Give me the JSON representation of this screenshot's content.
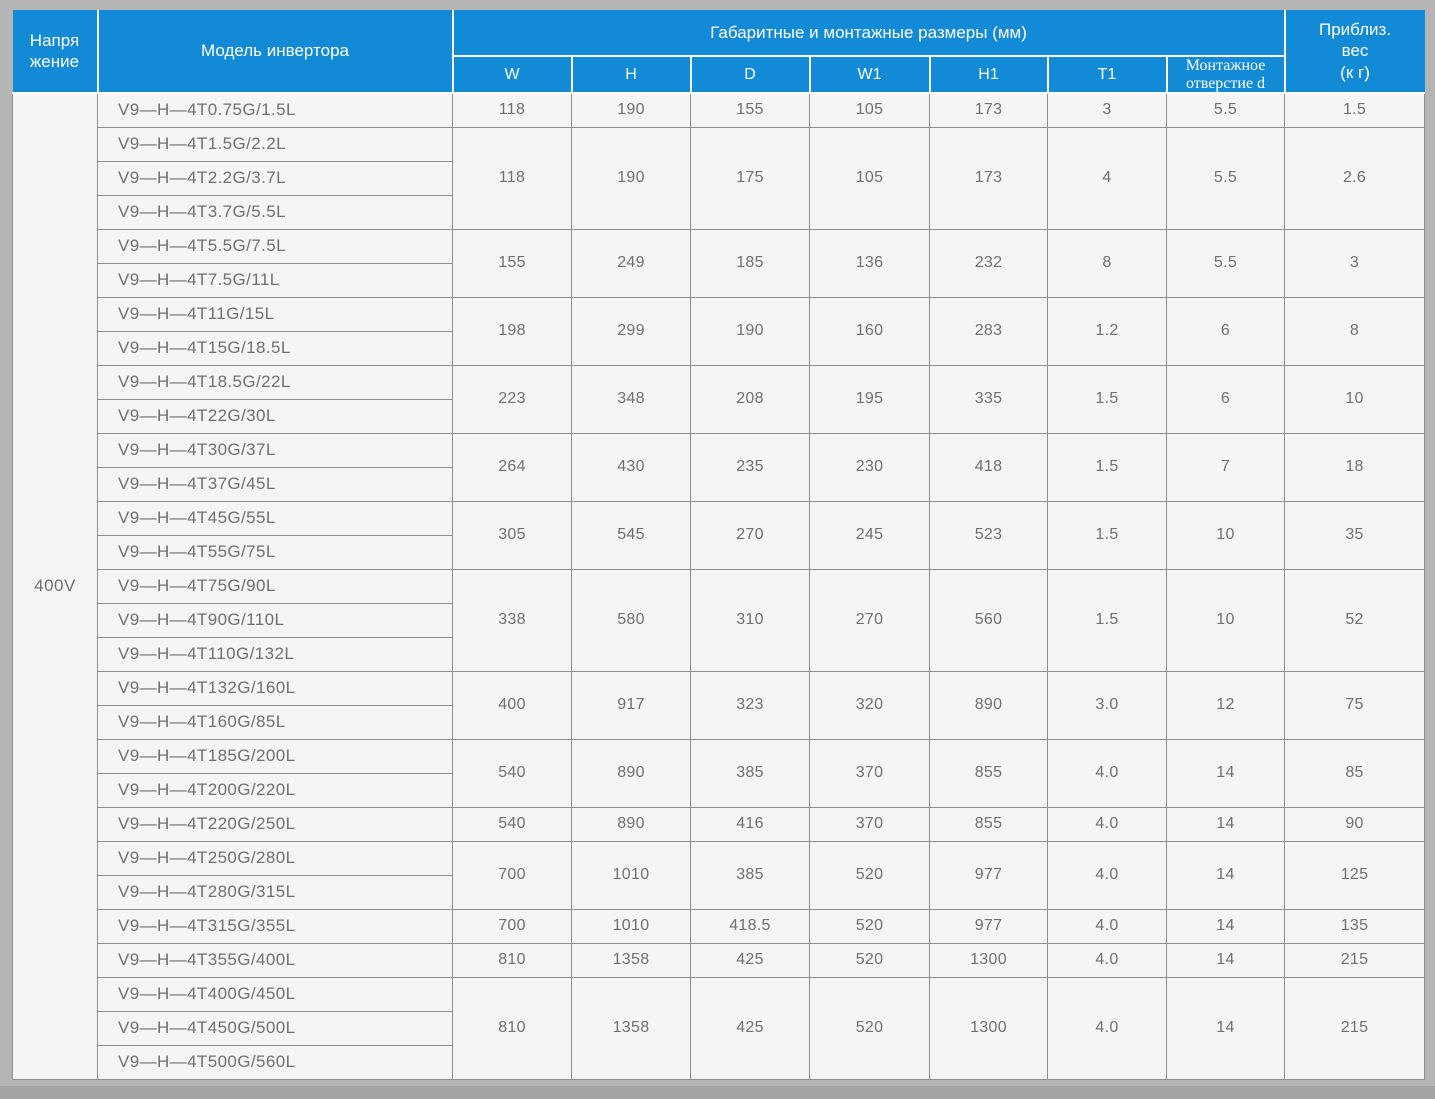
{
  "header": {
    "voltage": "Напря\nжение",
    "model": "Модель инвертора",
    "dims_group": "Габаритные и монтажные размеры (мм)",
    "dim_cols": [
      "W",
      "H",
      "D",
      "W1",
      "H1",
      "T1",
      "Монтажное\nотверстие d"
    ],
    "weight": "Приблиз.\nвес\n(к г)"
  },
  "voltage_value": "400V",
  "groups": [
    {
      "models": [
        "V9—H—4T0.75G/1.5L"
      ],
      "dims": [
        "118",
        "190",
        "155",
        "105",
        "173",
        "3",
        "5.5"
      ],
      "weight": "1.5"
    },
    {
      "models": [
        "V9—H—4T1.5G/2.2L",
        "V9—H—4T2.2G/3.7L",
        "V9—H—4T3.7G/5.5L"
      ],
      "dims": [
        "118",
        "190",
        "175",
        "105",
        "173",
        "4",
        "5.5"
      ],
      "weight": "2.6"
    },
    {
      "models": [
        "V9—H—4T5.5G/7.5L",
        "V9—H—4T7.5G/11L"
      ],
      "dims": [
        "155",
        "249",
        "185",
        "136",
        "232",
        "8",
        "5.5"
      ],
      "weight": "3"
    },
    {
      "models": [
        "V9—H—4T11G/15L",
        "V9—H—4T15G/18.5L"
      ],
      "dims": [
        "198",
        "299",
        "190",
        "160",
        "283",
        "1.2",
        "6"
      ],
      "weight": "8"
    },
    {
      "models": [
        "V9—H—4T18.5G/22L",
        "V9—H—4T22G/30L"
      ],
      "dims": [
        "223",
        "348",
        "208",
        "195",
        "335",
        "1.5",
        "6"
      ],
      "weight": "10"
    },
    {
      "models": [
        "V9—H—4T30G/37L",
        "V9—H—4T37G/45L"
      ],
      "dims": [
        "264",
        "430",
        "235",
        "230",
        "418",
        "1.5",
        "7"
      ],
      "weight": "18"
    },
    {
      "models": [
        "V9—H—4T45G/55L",
        "V9—H—4T55G/75L"
      ],
      "dims": [
        "305",
        "545",
        "270",
        "245",
        "523",
        "1.5",
        "10"
      ],
      "weight": "35"
    },
    {
      "models": [
        "V9—H—4T75G/90L",
        "V9—H—4T90G/110L",
        "V9—H—4T110G/132L"
      ],
      "dims": [
        "338",
        "580",
        "310",
        "270",
        "560",
        "1.5",
        "10"
      ],
      "weight": "52"
    },
    {
      "models": [
        "V9—H—4T132G/160L",
        "V9—H—4T160G/85L"
      ],
      "dims": [
        "400",
        "917",
        "323",
        "320",
        "890",
        "3.0",
        "12"
      ],
      "weight": "75"
    },
    {
      "models": [
        "V9—H—4T185G/200L",
        "V9—H—4T200G/220L"
      ],
      "dims": [
        "540",
        "890",
        "385",
        "370",
        "855",
        "4.0",
        "14"
      ],
      "weight": "85"
    },
    {
      "models": [
        "V9—H—4T220G/250L"
      ],
      "dims": [
        "540",
        "890",
        "416",
        "370",
        "855",
        "4.0",
        "14"
      ],
      "weight": "90"
    },
    {
      "models": [
        "V9—H—4T250G/280L",
        "V9—H—4T280G/315L"
      ],
      "dims": [
        "700",
        "1010",
        "385",
        "520",
        "977",
        "4.0",
        "14"
      ],
      "weight": "125"
    },
    {
      "models": [
        "V9—H—4T315G/355L"
      ],
      "dims": [
        "700",
        "1010",
        "418.5",
        "520",
        "977",
        "4.0",
        "14"
      ],
      "weight": "135"
    },
    {
      "models": [
        "V9—H—4T355G/400L"
      ],
      "dims": [
        "810",
        "1358",
        "425",
        "520",
        "1300",
        "4.0",
        "14"
      ],
      "weight": "215"
    },
    {
      "models": [
        "V9—H—4T400G/450L",
        "V9—H—4T450G/500L",
        "V9—H—4T500G/560L"
      ],
      "dims": [
        "810",
        "1358",
        "425",
        "520",
        "1300",
        "4.0",
        "14"
      ],
      "weight": "215"
    }
  ],
  "colors": {
    "header_blue": "#138ad6",
    "cell_bg": "#f5f5f5",
    "border_gray": "#8f8f8f",
    "text_gray": "#707070",
    "page_bg": "#b5b5b5"
  }
}
